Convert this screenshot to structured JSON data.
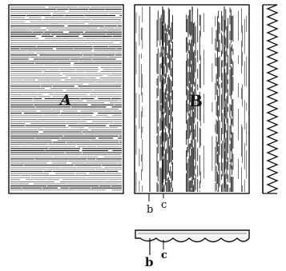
{
  "figure": {
    "panel_a": {
      "label": "A"
    },
    "panel_b": {
      "label": "B"
    },
    "plan_labels": {
      "b": "b",
      "c": "c"
    },
    "section_labels": {
      "b": "b",
      "c": "c"
    }
  }
}
